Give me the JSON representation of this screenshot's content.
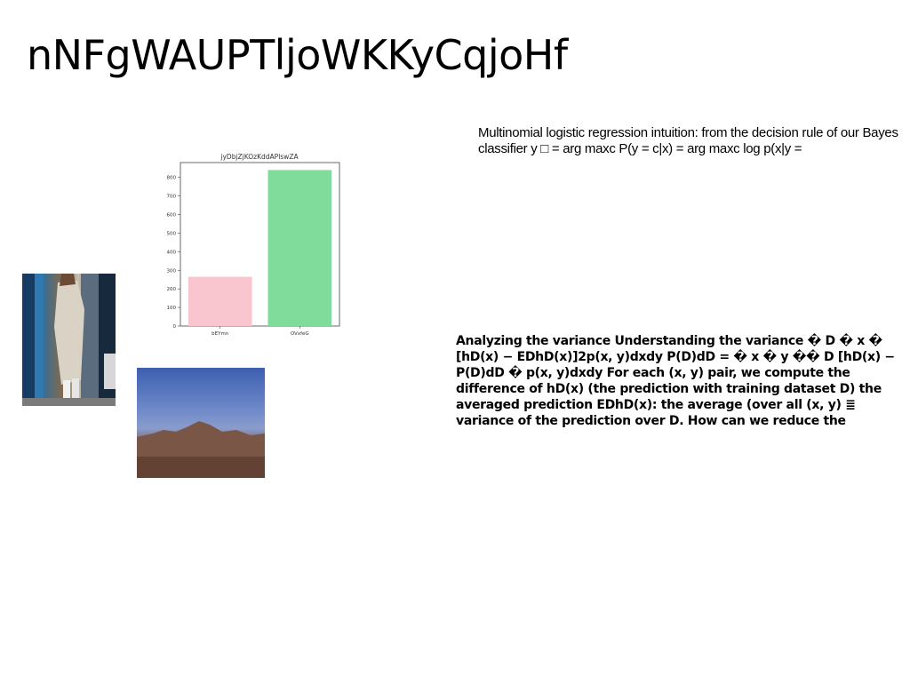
{
  "document": {
    "title": "nNFgWAUPTljoWKKyCqjoHf",
    "paragraph1": "Multinomial logistic regression intuition: from the decision rule of our Bayes classifier y □ = arg maxc P(y = c|x) = arg maxc log p(x|y =",
    "paragraph2": "Analyzing the variance Understanding the variance � D � x � [hD(x) − EDhD(x)]2p(x, y)dxdy P(D)dD = � x � y �� D [hD(x) − P(D)dD � p(x, y)dxdy For each (x, y) pair, we compute the difference of hD(x) (the prediction with training dataset D) the averaged prediction EDhD(x): the average (over all (x, y) ≣ variance of the prediction over D. How can we reduce the"
  },
  "images": {
    "street_photo": "photo of a person in a long coat on a city street",
    "mountain_photo": "photo of a mountain silhouette under a blue dusk sky"
  },
  "chart_data": {
    "type": "bar",
    "title": "jyDbjZjKOzKddAPlswZA",
    "categories": [
      "bEYmn",
      "OVxfeG"
    ],
    "values": [
      265,
      840
    ],
    "colors": [
      "#f9c6cf",
      "#80dc9b"
    ],
    "yticks": [
      0,
      100,
      200,
      300,
      400,
      500,
      600,
      700,
      800
    ],
    "ylim": [
      0,
      880
    ],
    "xlabel": "",
    "ylabel": ""
  }
}
